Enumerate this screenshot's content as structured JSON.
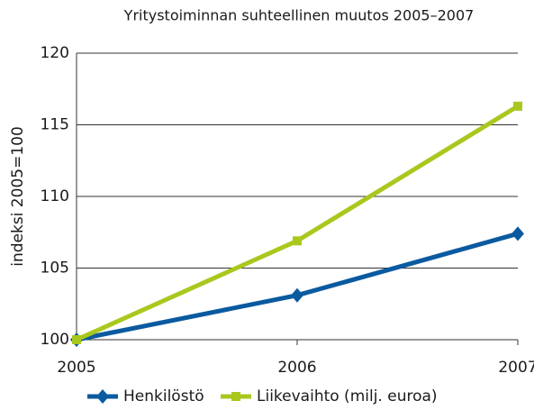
{
  "chart_data": {
    "type": "line",
    "title": "Yritystoiminnan suhteellinen muutos 2005–2007",
    "y_label": "indeksi 2005=100",
    "x": [
      2005,
      2006,
      2007
    ],
    "xlim": [
      2005,
      2007
    ],
    "xticks": [
      2005,
      2006,
      2007
    ],
    "ylim": [
      100,
      120
    ],
    "yticks": [
      100,
      105,
      110,
      115,
      120
    ],
    "grid": true,
    "legend": "bottom",
    "series": [
      {
        "name": "Henkilöstö",
        "color": "#0a5aa0",
        "marker": "diamond",
        "values": [
          100,
          103.1,
          107.4
        ]
      },
      {
        "name": "Liikevaihto (milj. euroa)",
        "color": "#a8c81e",
        "marker": "square",
        "values": [
          100,
          106.9,
          116.3
        ]
      }
    ]
  }
}
